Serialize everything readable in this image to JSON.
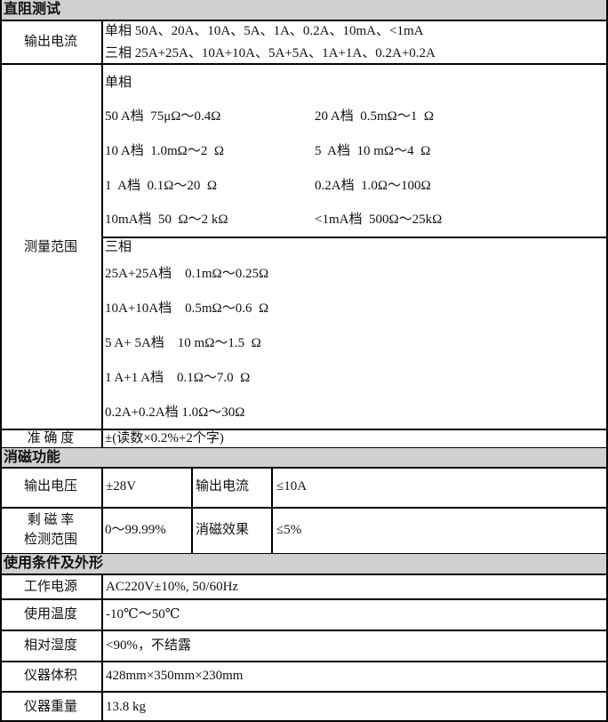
{
  "sections": {
    "dc": "直阻测试",
    "demag": "消磁功能",
    "cond": "使用条件及外形"
  },
  "dc": {
    "output_current_label": "输出电流",
    "output_current_lines": [
      "单相 50A、20A、10A、5A、1A、0.2A、10mA、<1mA",
      "三相 25A+25A、10A+10A、5A+5A、1A+1A、0.2A+0.2A"
    ],
    "range_label": "测量范围",
    "single_title": "单相",
    "single_rows": [
      [
        "50 A档  75μΩ～0.4Ω",
        "20 A档  0.5mΩ～1  Ω"
      ],
      [
        "10 A档  1.0mΩ～2  Ω",
        "5  A档  10 mΩ～4  Ω"
      ],
      [
        "1  A档  0.1Ω～20  Ω",
        "0.2A档  1.0Ω～100Ω"
      ],
      [
        "10mA档  50  Ω～2 kΩ",
        "<1mA档  500Ω～25kΩ"
      ]
    ],
    "three_title": "三相",
    "three_rows": [
      "25A+25A档    0.1mΩ～0.25Ω",
      "10A+10A档    0.5mΩ～0.6  Ω",
      "5 A+ 5A档    10 mΩ～1.5  Ω",
      "1 A+1 A档    0.1Ω～7.0  Ω",
      "0.2A+0.2A档 1.0Ω～30Ω"
    ],
    "accuracy_label": "准 确 度",
    "accuracy_value": "±(读数×0.2%+2个字)"
  },
  "demag": {
    "voltage_label": "输出电压",
    "voltage_value": "±28V",
    "current_label": "输出电流",
    "current_value": "≤10A",
    "remanence_label_1": "剩 磁 率",
    "remanence_label_2": "检测范围",
    "remanence_value": "0～99.99%",
    "effect_label": "消磁效果",
    "effect_value": "≤5%"
  },
  "cond": {
    "rows": [
      {
        "label": "工作电源",
        "value": "AC220V±10%, 50/60Hz"
      },
      {
        "label": "使用温度",
        "value": "-10℃～50℃"
      },
      {
        "label": "相对湿度",
        "value": "<90%，不结露"
      },
      {
        "label": "仪器体积",
        "value": "428mm×350mm×230mm"
      },
      {
        "label": "仪器重量",
        "value": "13.8 kg"
      }
    ]
  }
}
